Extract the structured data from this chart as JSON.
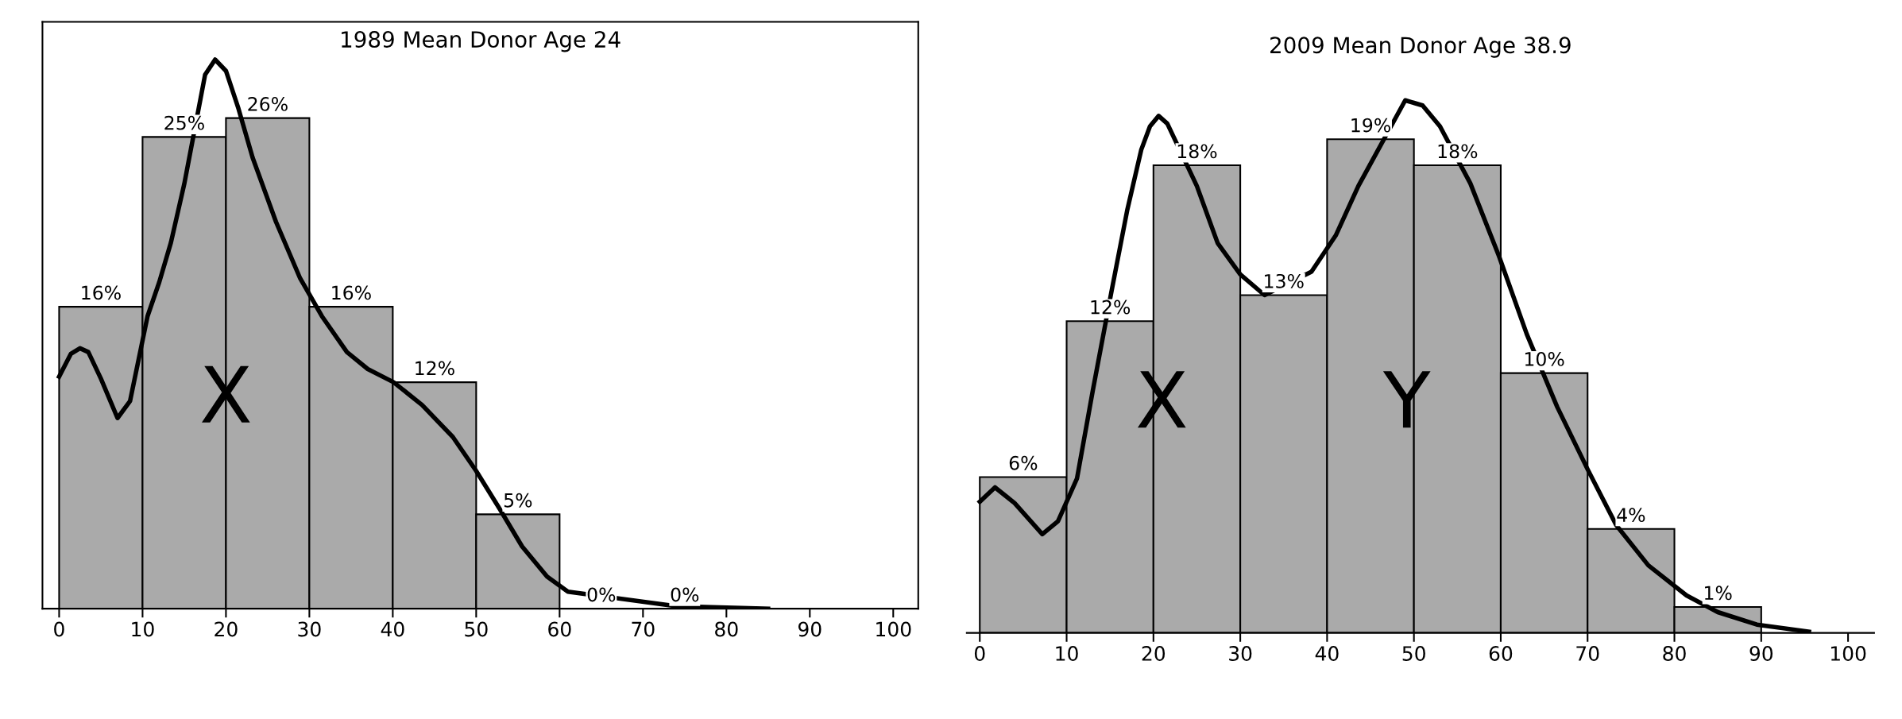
{
  "chart_data": [
    {
      "type": "histogram",
      "title": "1989 Mean Donor Age 24",
      "bins": [
        0,
        10,
        20,
        30,
        40,
        50,
        60,
        70,
        80
      ],
      "values": [
        16,
        25,
        26,
        16,
        12,
        5,
        0,
        0
      ],
      "value_labels": [
        "16%",
        "25%",
        "26%",
        "16%",
        "12%",
        "5%",
        "0%",
        "0%"
      ],
      "color": "#aaaaaa",
      "xlim": [
        -2,
        103
      ],
      "ylim": [
        0,
        31.1
      ],
      "xticks": [
        0,
        10,
        20,
        30,
        40,
        50,
        60,
        70,
        80,
        90,
        100
      ],
      "tick_labels": "x",
      "grid": false,
      "series": [
        {
          "type": "line",
          "color": "#000000",
          "x": [
            0,
            1.4,
            2.5,
            3.5,
            5,
            7,
            8.5,
            10.6,
            12,
            13.4,
            15,
            17.5,
            18.7,
            20,
            21.5,
            23.2,
            26,
            28.9,
            31.5,
            34.5,
            37,
            40.1,
            43.5,
            47.2,
            50,
            52.8,
            55.5,
            58.5,
            61,
            74,
            85
          ],
          "values": [
            12.3,
            13.5,
            13.8,
            13.6,
            12.2,
            10.1,
            11.0,
            15.5,
            17.3,
            19.4,
            22.5,
            28.3,
            29.1,
            28.5,
            26.5,
            23.9,
            20.5,
            17.5,
            15.5,
            13.6,
            12.7,
            12.0,
            10.8,
            9.1,
            7.3,
            5.3,
            3.3,
            1.7,
            0.9,
            0.13,
            0
          ]
        }
      ],
      "annotations": [
        {
          "text": "X",
          "x": 20,
          "y": 11
        }
      ]
    },
    {
      "type": "histogram",
      "title": "2009 Mean Donor Age 38.9",
      "bins": [
        0,
        10,
        20,
        30,
        40,
        50,
        60,
        70,
        80,
        90
      ],
      "values": [
        6,
        12,
        18,
        13,
        19,
        18,
        10,
        4,
        1
      ],
      "value_labels": [
        "6%",
        "12%",
        "18%",
        "13%",
        "19%",
        "18%",
        "10%",
        "4%",
        "1%"
      ],
      "color": "#aaaaaa",
      "xlim": [
        -1.5,
        103
      ],
      "xticks": [
        0,
        10,
        20,
        30,
        40,
        50,
        60,
        70,
        80,
        90,
        100
      ],
      "tick_labels": "x",
      "grid": false,
      "series": [
        {
          "type": "line",
          "color": "#000000",
          "x": [
            0,
            1.75,
            4,
            7.2,
            9,
            11.2,
            13,
            15.2,
            17,
            18.6,
            19.6,
            20.6,
            21.6,
            25,
            27.4,
            30,
            32.8,
            38.2,
            41,
            43.6,
            49,
            51,
            53,
            56.5,
            59.8,
            63,
            66.5,
            70,
            73.3,
            77,
            81.4,
            85,
            89.5,
            95.5
          ],
          "values": [
            5.05,
            5.6,
            5.0,
            3.8,
            4.3,
            5.95,
            9.3,
            13.2,
            16.3,
            18.6,
            19.5,
            19.9,
            19.6,
            17.2,
            15.0,
            13.8,
            13.0,
            13.9,
            15.3,
            17.2,
            20.5,
            20.3,
            19.5,
            17.3,
            14.5,
            11.5,
            8.7,
            6.3,
            4.15,
            2.6,
            1.44,
            0.8,
            0.32,
            0.05
          ]
        }
      ],
      "annotations": [
        "X",
        "Y"
      ]
    }
  ]
}
